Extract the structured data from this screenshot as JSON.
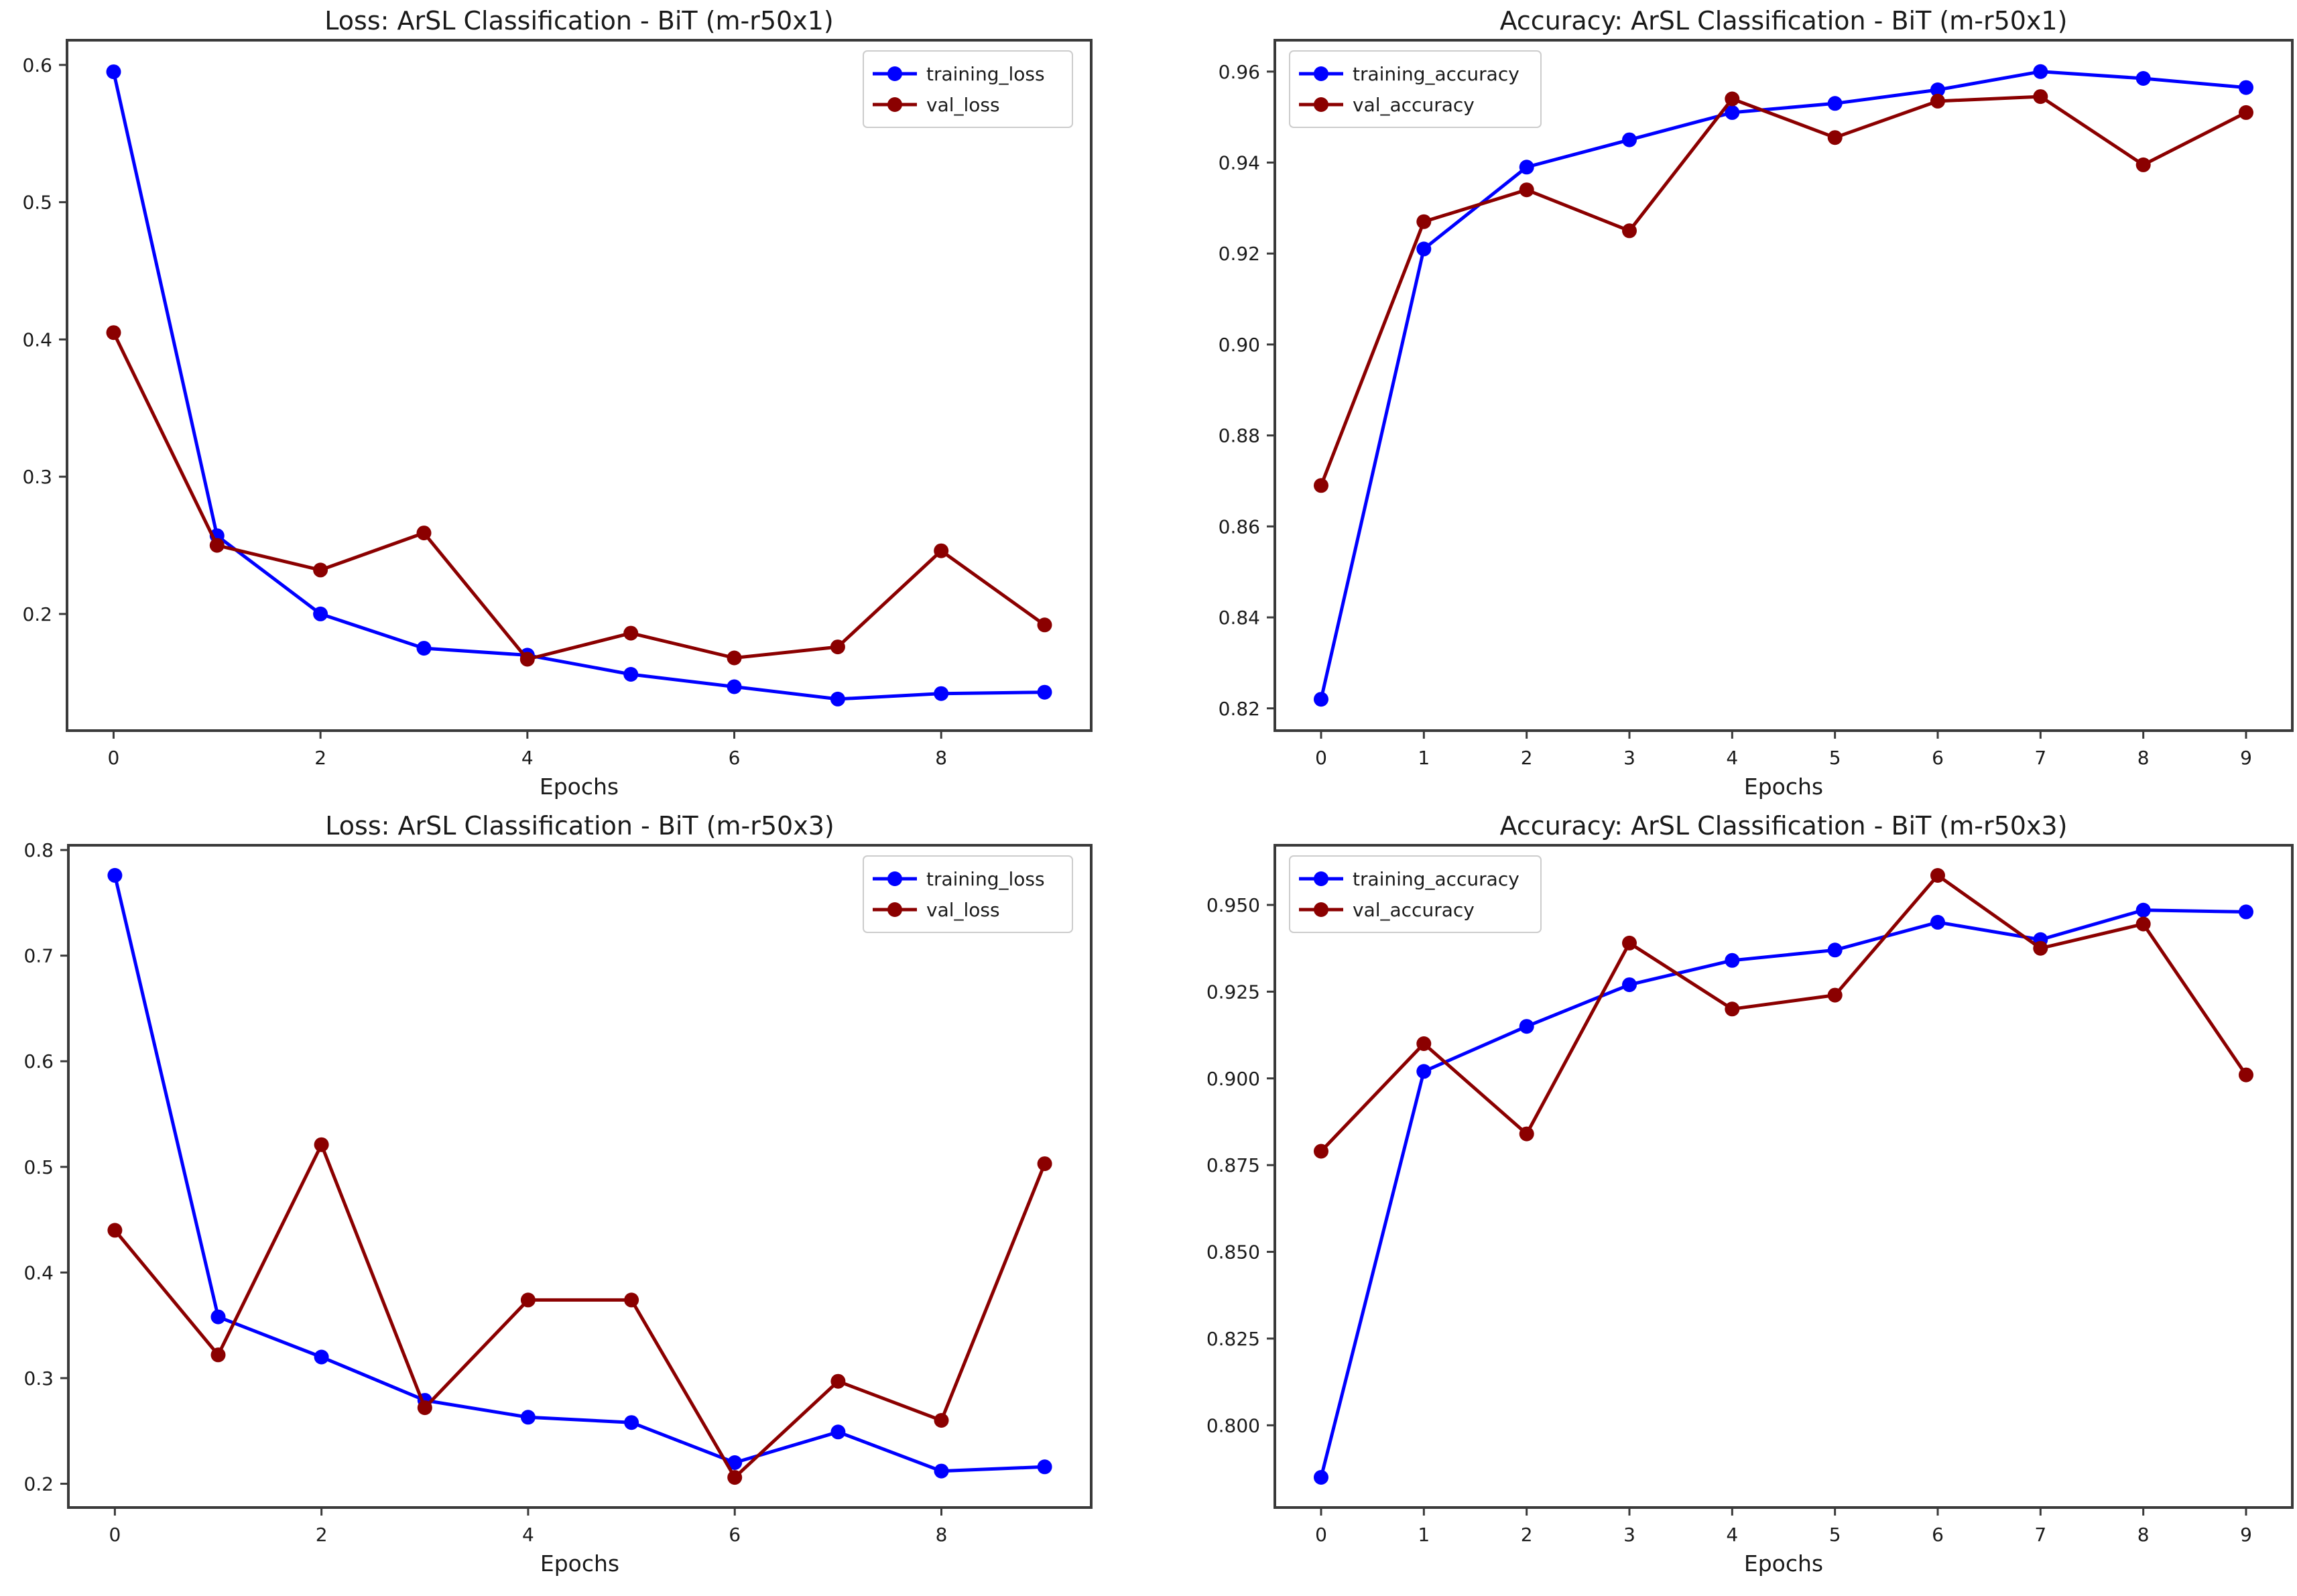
{
  "figure_background": "#ffffff",
  "colors": {
    "training_series": "#0000ff",
    "validation_series": "#8b0000",
    "spine": "#3a3a3a",
    "tick_text": "#1a1a1a",
    "legend_border": "#cccccc",
    "legend_background": "#ffffff"
  },
  "chart_data": [
    {
      "type": "line",
      "title": "Loss: ArSL Classification - BiT (m-r50x1)",
      "xlabel": "Epochs",
      "x": [
        0,
        1,
        2,
        3,
        4,
        5,
        6,
        7,
        8,
        9
      ],
      "series": [
        {
          "name": "training_loss",
          "color": "#0000ff",
          "values": [
            0.595,
            0.257,
            0.2,
            0.175,
            0.17,
            0.156,
            0.147,
            0.138,
            0.142,
            0.143
          ]
        },
        {
          "name": "val_loss",
          "color": "#8b0000",
          "values": [
            0.405,
            0.25,
            0.232,
            0.259,
            0.167,
            0.186,
            0.168,
            0.176,
            0.246,
            0.192
          ]
        }
      ],
      "xlim": [
        -0.45,
        9.45
      ],
      "ylim": [
        0.115,
        0.618
      ],
      "xticks": [
        0,
        2,
        4,
        6,
        8
      ],
      "yticks": [
        0.2,
        0.3,
        0.4,
        0.5,
        0.6
      ],
      "ytick_decimals": 1,
      "grid": false,
      "legend_position": "upper-right"
    },
    {
      "type": "line",
      "title": "Accuracy: ArSL Classification - BiT (m-r50x1)",
      "xlabel": "Epochs",
      "x": [
        0,
        1,
        2,
        3,
        4,
        5,
        6,
        7,
        8,
        9
      ],
      "series": [
        {
          "name": "training_accuracy",
          "color": "#0000ff",
          "values": [
            0.822,
            0.921,
            0.939,
            0.945,
            0.951,
            0.953,
            0.956,
            0.96,
            0.9585,
            0.9565
          ]
        },
        {
          "name": "val_accuracy",
          "color": "#8b0000",
          "values": [
            0.869,
            0.927,
            0.934,
            0.925,
            0.954,
            0.9455,
            0.9535,
            0.9545,
            0.9395,
            0.951
          ]
        }
      ],
      "xlim": [
        -0.45,
        9.45
      ],
      "ylim": [
        0.8151,
        0.9669
      ],
      "xticks": [
        0,
        1,
        2,
        3,
        4,
        5,
        6,
        7,
        8,
        9
      ],
      "yticks": [
        0.82,
        0.84,
        0.86,
        0.88,
        0.9,
        0.92,
        0.94,
        0.96
      ],
      "ytick_decimals": 2,
      "grid": false,
      "legend_position": "upper-left"
    },
    {
      "type": "line",
      "title": "Loss: ArSL Classification - BiT (m-r50x3)",
      "xlabel": "Epochs",
      "x": [
        0,
        1,
        2,
        3,
        4,
        5,
        6,
        7,
        8,
        9
      ],
      "series": [
        {
          "name": "training_loss",
          "color": "#0000ff",
          "values": [
            0.776,
            0.358,
            0.32,
            0.279,
            0.263,
            0.258,
            0.22,
            0.249,
            0.212,
            0.216
          ]
        },
        {
          "name": "val_loss",
          "color": "#8b0000",
          "values": [
            0.44,
            0.322,
            0.521,
            0.272,
            0.374,
            0.374,
            0.206,
            0.297,
            0.26,
            0.503
          ]
        }
      ],
      "xlim": [
        -0.45,
        9.45
      ],
      "ylim": [
        0.1775,
        0.8045
      ],
      "xticks": [
        0,
        2,
        4,
        6,
        8
      ],
      "yticks": [
        0.2,
        0.3,
        0.4,
        0.5,
        0.6,
        0.7,
        0.8
      ],
      "ytick_decimals": 1,
      "grid": false,
      "legend_position": "upper-right"
    },
    {
      "type": "line",
      "title": "Accuracy: ArSL Classification - BiT (m-r50x3)",
      "xlabel": "Epochs",
      "x": [
        0,
        1,
        2,
        3,
        4,
        5,
        6,
        7,
        8,
        9
      ],
      "series": [
        {
          "name": "training_accuracy",
          "color": "#0000ff",
          "values": [
            0.785,
            0.902,
            0.915,
            0.927,
            0.934,
            0.937,
            0.945,
            0.94,
            0.9485,
            0.948
          ]
        },
        {
          "name": "val_accuracy",
          "color": "#8b0000",
          "values": [
            0.879,
            0.91,
            0.884,
            0.939,
            0.92,
            0.924,
            0.9585,
            0.9375,
            0.9445,
            0.901
          ]
        }
      ],
      "xlim": [
        -0.45,
        9.45
      ],
      "ylim": [
        0.7763,
        0.9672
      ],
      "xticks": [
        0,
        1,
        2,
        3,
        4,
        5,
        6,
        7,
        8,
        9
      ],
      "yticks": [
        0.8,
        0.825,
        0.85,
        0.875,
        0.9,
        0.925,
        0.95
      ],
      "ytick_decimals": 3,
      "grid": false,
      "legend_position": "upper-left"
    }
  ]
}
